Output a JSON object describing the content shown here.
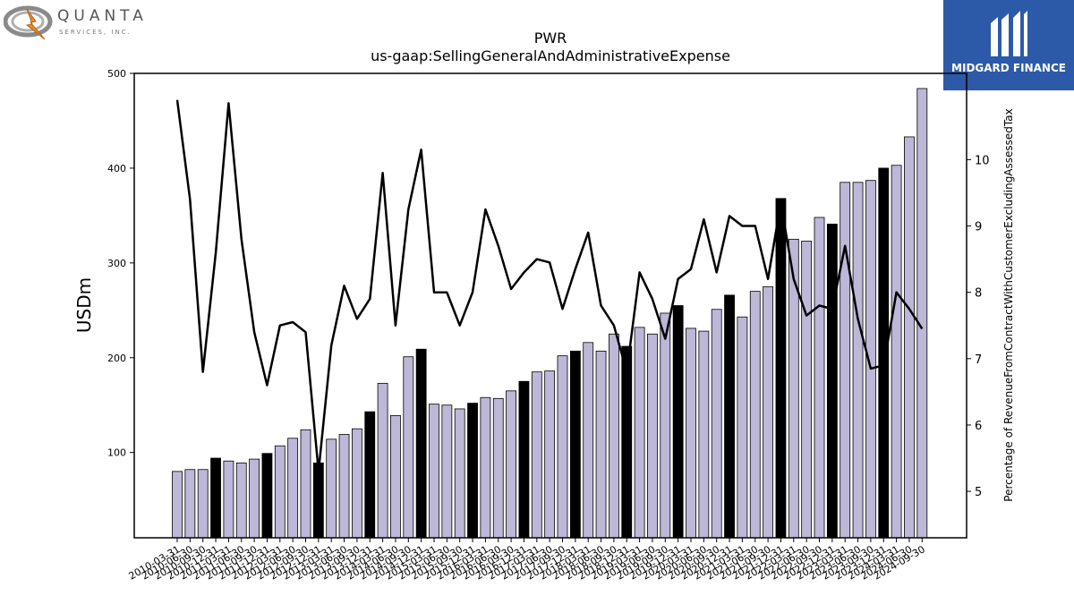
{
  "logos": {
    "left": {
      "name": "QUANTA",
      "sub": "SERVICES, INC."
    },
    "right": {
      "name": "MIDGARD FINANCE"
    }
  },
  "chart_data": {
    "type": "bar",
    "title": "PWR",
    "subtitle": "us-gaap:SellingGeneralAndAdministrativeExpense",
    "ylabel": "USDm",
    "y2label": "Percentage of RevenueFromContractWithCustomerExcludingAssessedTax",
    "ylim": [
      10,
      500
    ],
    "y2lim": [
      4.3,
      11.3
    ],
    "yticks": [
      100,
      200,
      300,
      400,
      500
    ],
    "y2ticks": [
      5,
      6,
      7,
      8,
      9,
      10
    ],
    "legend": "none",
    "grid": false,
    "categories": [
      "2010-03-31",
      "2010-06-30",
      "2010-09-30",
      "2010-12-31",
      "2011-03-31",
      "2011-06-30",
      "2011-09-30",
      "2011-12-31",
      "2012-03-31",
      "2012-06-30",
      "2012-09-30",
      "2012-12-31",
      "2013-03-31",
      "2013-06-30",
      "2013-09-30",
      "2013-12-31",
      "2014-03-31",
      "2014-06-30",
      "2014-09-30",
      "2014-12-31",
      "2015-03-31",
      "2015-06-30",
      "2015-09-30",
      "2015-12-31",
      "2016-03-31",
      "2016-06-30",
      "2016-09-30",
      "2016-12-31",
      "2017-03-31",
      "2017-06-30",
      "2017-09-30",
      "2017-12-31",
      "2018-03-31",
      "2018-06-30",
      "2018-09-30",
      "2018-12-31",
      "2019-03-31",
      "2019-06-30",
      "2019-09-30",
      "2019-12-31",
      "2020-03-31",
      "2020-06-30",
      "2020-09-30",
      "2020-12-31",
      "2021-03-31",
      "2021-06-30",
      "2021-09-30",
      "2021-12-31",
      "2022-03-31",
      "2022-06-30",
      "2022-09-30",
      "2022-12-31",
      "2023-03-31",
      "2023-06-30",
      "2023-09-30",
      "2023-12-31",
      "2024-03-31",
      "2024-06-30",
      "2024-09-30"
    ],
    "series": [
      {
        "type": "bar",
        "axis": "left",
        "values": [
          80,
          82,
          82,
          94,
          91,
          89,
          93,
          99,
          107,
          115,
          124,
          89,
          114,
          119,
          125,
          143,
          173,
          139,
          201,
          209,
          151,
          150,
          146,
          152,
          158,
          157,
          165,
          175,
          185,
          186,
          202,
          207,
          216,
          207,
          225,
          212,
          232,
          225,
          247,
          255,
          231,
          228,
          251,
          266,
          243,
          270,
          275,
          368,
          325,
          323,
          348,
          341,
          385,
          385,
          387,
          400,
          403,
          433,
          484
        ],
        "colors": {
          "default": "#bdb8d8",
          "year_end": "#000000"
        }
      },
      {
        "type": "line",
        "axis": "right",
        "values": [
          10.9,
          9.4,
          6.8,
          8.6,
          10.85,
          8.8,
          7.4,
          6.6,
          7.5,
          7.55,
          7.4,
          5.3,
          7.2,
          8.1,
          7.6,
          7.9,
          9.8,
          7.5,
          9.25,
          10.15,
          8,
          8,
          7.5,
          8,
          9.25,
          8.7,
          8.05,
          8.3,
          8.5,
          8.45,
          7.75,
          8.35,
          8.9,
          7.8,
          7.5,
          6.8,
          8.3,
          7.9,
          7.3,
          8.2,
          8.35,
          9.1,
          8.3,
          9.15,
          9,
          9,
          8.2,
          9.35,
          8.2,
          7.65,
          7.8,
          7.75,
          8.7,
          7.6,
          6.85,
          6.9,
          8,
          7.75,
          7.45
        ],
        "color": "#000000"
      }
    ]
  }
}
